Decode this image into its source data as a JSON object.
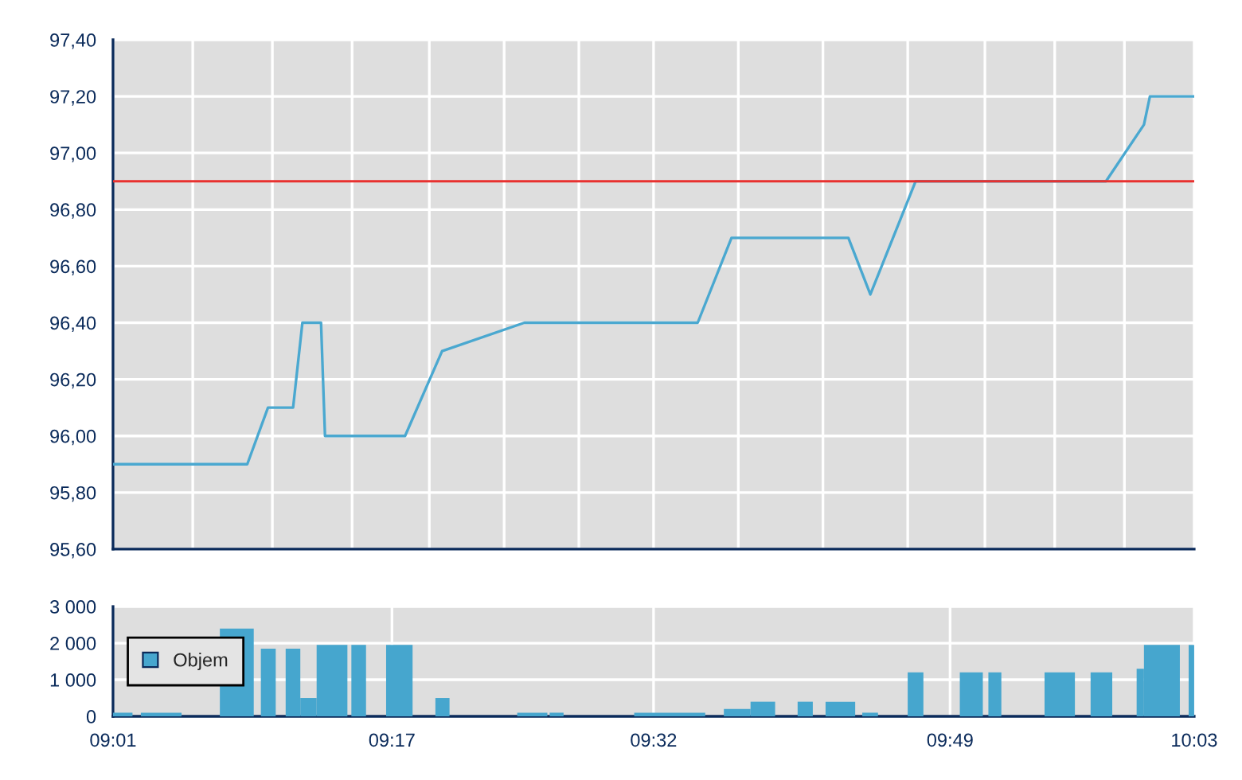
{
  "chart_data": [
    {
      "type": "line",
      "x": [
        9.0167,
        9.145,
        9.1648,
        9.1888,
        9.1977,
        9.2155,
        9.2193,
        9.2958,
        9.3312,
        9.4098,
        9.5755,
        9.6078,
        9.7195,
        9.7405,
        9.7838,
        9.9657,
        10.002,
        10.0077,
        10.05
      ],
      "series": [
        {
          "color": "#4aa8d0",
          "values": [
            95.9,
            95.9,
            96.1,
            96.1,
            96.4,
            96.4,
            96.0,
            96.0,
            96.3,
            96.4,
            96.4,
            96.7,
            96.7,
            96.5,
            96.9,
            96.9,
            97.1,
            97.2,
            97.2
          ]
        }
      ],
      "xlim": [
        9.0167,
        10.05
      ],
      "xticks": [
        {
          "value": 9.0167,
          "label": null
        },
        {
          "value": 9.0929,
          "label": null
        },
        {
          "value": 9.169,
          "label": null
        },
        {
          "value": 9.2452,
          "label": null
        },
        {
          "value": 9.319,
          "label": null
        },
        {
          "value": 9.3905,
          "label": null
        },
        {
          "value": 9.4619,
          "label": null
        },
        {
          "value": 9.5333,
          "label": null
        },
        {
          "value": 9.6143,
          "label": null
        },
        {
          "value": 9.6952,
          "label": null
        },
        {
          "value": 9.7762,
          "label": null
        },
        {
          "value": 9.85,
          "label": null
        },
        {
          "value": 9.9167,
          "label": null
        },
        {
          "value": 9.9833,
          "label": null
        },
        {
          "value": 10.05,
          "label": null
        }
      ],
      "ylim": [
        95.6,
        97.4
      ],
      "yticks": [
        {
          "value": 95.6,
          "label": "95,60"
        },
        {
          "value": 95.8,
          "label": "95,80"
        },
        {
          "value": 96.0,
          "label": "96,00"
        },
        {
          "value": 96.2,
          "label": "96,20"
        },
        {
          "value": 96.4,
          "label": "96,40"
        },
        {
          "value": 96.6,
          "label": "96,60"
        },
        {
          "value": 96.8,
          "label": "96,80"
        },
        {
          "value": 97.0,
          "label": "97,00"
        },
        {
          "value": 97.2,
          "label": "97,20"
        },
        {
          "value": 97.4,
          "label": "97,40"
        }
      ],
      "ref_lines": [
        {
          "axis": "y",
          "value": 96.9,
          "color": "#e8312f"
        }
      ],
      "grid": true,
      "tick_labels": "y"
    },
    {
      "type": "histogram",
      "bins": [
        9.0167,
        9.0353,
        9.0433,
        9.0822,
        9.1188,
        9.1512,
        9.158,
        9.1722,
        9.1817,
        9.1957,
        9.2113,
        9.2407,
        9.2445,
        9.2585,
        9.2777,
        9.303,
        9.3248,
        9.3383,
        9.403,
        9.4318,
        9.434,
        9.4473,
        9.5148,
        9.5827,
        9.6005,
        9.626,
        9.6495,
        9.671,
        9.6855,
        9.6977,
        9.726,
        9.7328,
        9.7478,
        9.7762,
        9.7912,
        9.826,
        9.848,
        9.8533,
        9.8657,
        9.907,
        9.936,
        9.951,
        9.9717,
        9.995,
        10.002,
        10.0363,
        10.0447,
        10.05
      ],
      "series": [
        {
          "name": "Objem",
          "color": "#46a6ce",
          "values": [
            100,
            null,
            100,
            null,
            2400,
            null,
            1850,
            null,
            1850,
            500,
            1950,
            null,
            1950,
            null,
            1950,
            null,
            500,
            null,
            100,
            null,
            100,
            null,
            100,
            null,
            200,
            400,
            null,
            400,
            null,
            400,
            null,
            100,
            null,
            1200,
            null,
            1200,
            null,
            1200,
            null,
            1200,
            null,
            1200,
            null,
            1300,
            1950,
            null,
            1950
          ]
        }
      ],
      "xlim": [
        9.0167,
        10.05
      ],
      "xticks": [
        {
          "value": 9.0167,
          "label": "09:01"
        },
        {
          "value": 9.2833,
          "label": "09:17"
        },
        {
          "value": 9.5333,
          "label": "09:32"
        },
        {
          "value": 9.8167,
          "label": "09:49"
        },
        {
          "value": 10.05,
          "label": "10:03"
        }
      ],
      "ylim": [
        0,
        3000
      ],
      "yticks": [
        {
          "value": 0,
          "label": "0"
        },
        {
          "value": 1000,
          "label": "1 000"
        },
        {
          "value": 2000,
          "label": "2 000"
        },
        {
          "value": 3000,
          "label": "3 000"
        }
      ],
      "grid": true,
      "legend": "left"
    }
  ]
}
